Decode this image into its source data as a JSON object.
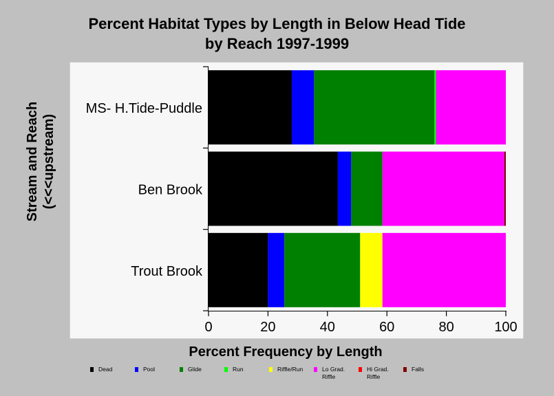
{
  "title_line1": "Percent Habitat Types by Length in Below Head Tide",
  "title_line2": "by Reach 1997-1999",
  "xlabel": "Percent Frequency by Length",
  "ylabel_line1": "Stream and Reach",
  "ylabel_line2": "(<<<upstream)",
  "chart_data": {
    "type": "bar",
    "orientation": "horizontal",
    "stacked": true,
    "title": "Percent Habitat Types by Length in Below Head Tide by Reach 1997-1999",
    "xlabel": "Percent Frequency by Length",
    "ylabel": "Stream and Reach (<<<upstream)",
    "xlim": [
      0,
      100
    ],
    "xticks": [
      0,
      20,
      40,
      60,
      80,
      100
    ],
    "categories": [
      "MS- H.Tide-Puddle",
      "Ben Brook",
      "Trout Brook"
    ],
    "legend_position": "bottom",
    "grid": false,
    "series": [
      {
        "name": "Dead",
        "color": "#000000",
        "values": [
          28,
          43.5,
          20
        ]
      },
      {
        "name": "Pool",
        "color": "#0000ff",
        "values": [
          7.5,
          4.5,
          5.5
        ]
      },
      {
        "name": "Glide",
        "color": "#008000",
        "values": [
          40.5,
          10.5,
          25.5
        ]
      },
      {
        "name": "Run",
        "color": "#00ff00",
        "values": [
          0.5,
          0,
          0
        ]
      },
      {
        "name": "Riffle/Run",
        "color": "#ffff00",
        "values": [
          0,
          0,
          7.5
        ]
      },
      {
        "name": "Lo Grad.\nRiffle",
        "color": "#ff00ff",
        "values": [
          23.5,
          41,
          41.5
        ]
      },
      {
        "name": "Hi Grad.\nRiffle",
        "color": "#ff0000",
        "values": [
          0,
          0,
          0
        ]
      },
      {
        "name": "Falls",
        "color": "#800000",
        "values": [
          0,
          0.5,
          0
        ]
      }
    ]
  }
}
